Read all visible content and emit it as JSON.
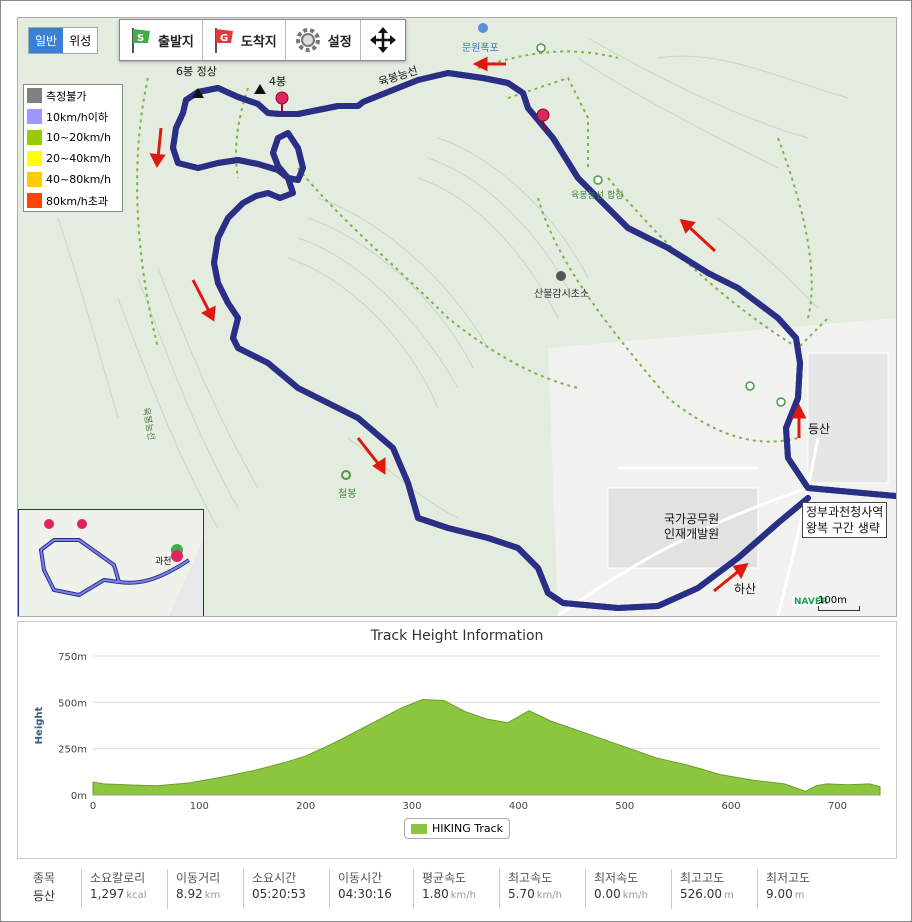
{
  "map": {
    "type_toggle": [
      "일반",
      "위성"
    ],
    "toolbar": [
      {
        "label": "출발지",
        "icon": "start-flag-icon"
      },
      {
        "label": "도착지",
        "icon": "goal-flag-icon"
      },
      {
        "label": "설정",
        "icon": "gear-icon"
      },
      {
        "label": "",
        "icon": "move-icon"
      }
    ],
    "speed_legend": [
      {
        "label": "측정불가",
        "color": "#808080"
      },
      {
        "label": "10km/h이하",
        "color": "#9999ff"
      },
      {
        "label": "10~20km/h",
        "color": "#99cc00"
      },
      {
        "label": "20~40km/h",
        "color": "#ffff00"
      },
      {
        "label": "40~80km/h",
        "color": "#ffcc00"
      },
      {
        "label": "80km/h초과",
        "color": "#ff4400"
      }
    ],
    "labels": {
      "peak6": "6봉 정상",
      "peak4": "4봉",
      "ridge": "육봉능선",
      "waterfall": "문원폭포",
      "guardpost": "산불감시초소",
      "cheolbong": "철봉",
      "jeombaek": "육봉능선 합점",
      "ascent": "등산",
      "descent": "하산",
      "institute_1": "국가공무원",
      "institute_2": "인재개발원",
      "note_1": "정부과천청사역",
      "note_2": "왕복 구간 생략",
      "minimap_place": "과천",
      "naver": "NAVER",
      "scale": "100m"
    },
    "colors": {
      "track": "#6b72e8",
      "track_edge": "#2a2f86",
      "arrow": "#e0190f",
      "trail": "#7db34a",
      "marker": "#e0245e"
    }
  },
  "chart": {
    "title": "Track Height Information",
    "ylabel": "Height",
    "legend": "HIKING Track"
  },
  "chart_data": {
    "type": "area",
    "title": "Track Height Information",
    "xlabel": "",
    "ylabel": "Height",
    "xlim": [
      0,
      740
    ],
    "ylim": [
      0,
      750
    ],
    "xticks": [
      "0",
      "100",
      "200",
      "300",
      "400",
      "500",
      "600",
      "700"
    ],
    "yticks": [
      "0m",
      "250m",
      "500m",
      "750m"
    ],
    "grid": true,
    "legend_position": "bottom-center",
    "series": [
      {
        "name": "HIKING Track",
        "color": "#8cc63f",
        "x": [
          0,
          10,
          30,
          60,
          90,
          120,
          150,
          180,
          200,
          230,
          260,
          290,
          310,
          330,
          350,
          370,
          390,
          410,
          430,
          450,
          470,
          500,
          530,
          560,
          590,
          620,
          650,
          670,
          680,
          690,
          710,
          730,
          740
        ],
        "y": [
          70,
          60,
          55,
          50,
          65,
          95,
          130,
          175,
          210,
          290,
          380,
          470,
          515,
          510,
          450,
          410,
          390,
          455,
          400,
          360,
          320,
          260,
          200,
          160,
          110,
          80,
          60,
          20,
          50,
          60,
          55,
          60,
          45
        ]
      }
    ]
  },
  "stats": [
    {
      "label": "종목",
      "value": "등산",
      "unit": ""
    },
    {
      "label": "소요칼로리",
      "value": "1,297",
      "unit": "kcal"
    },
    {
      "label": "이동거리",
      "value": "8.92",
      "unit": "km"
    },
    {
      "label": "소요시간",
      "value": "05:20:53",
      "unit": ""
    },
    {
      "label": "이동시간",
      "value": "04:30:16",
      "unit": ""
    },
    {
      "label": "평균속도",
      "value": "1.80",
      "unit": "km/h"
    },
    {
      "label": "최고속도",
      "value": "5.70",
      "unit": "km/h"
    },
    {
      "label": "최저속도",
      "value": "0.00",
      "unit": "km/h"
    },
    {
      "label": "최고고도",
      "value": "526.00",
      "unit": "m"
    },
    {
      "label": "최저고도",
      "value": "9.00",
      "unit": "m"
    }
  ]
}
